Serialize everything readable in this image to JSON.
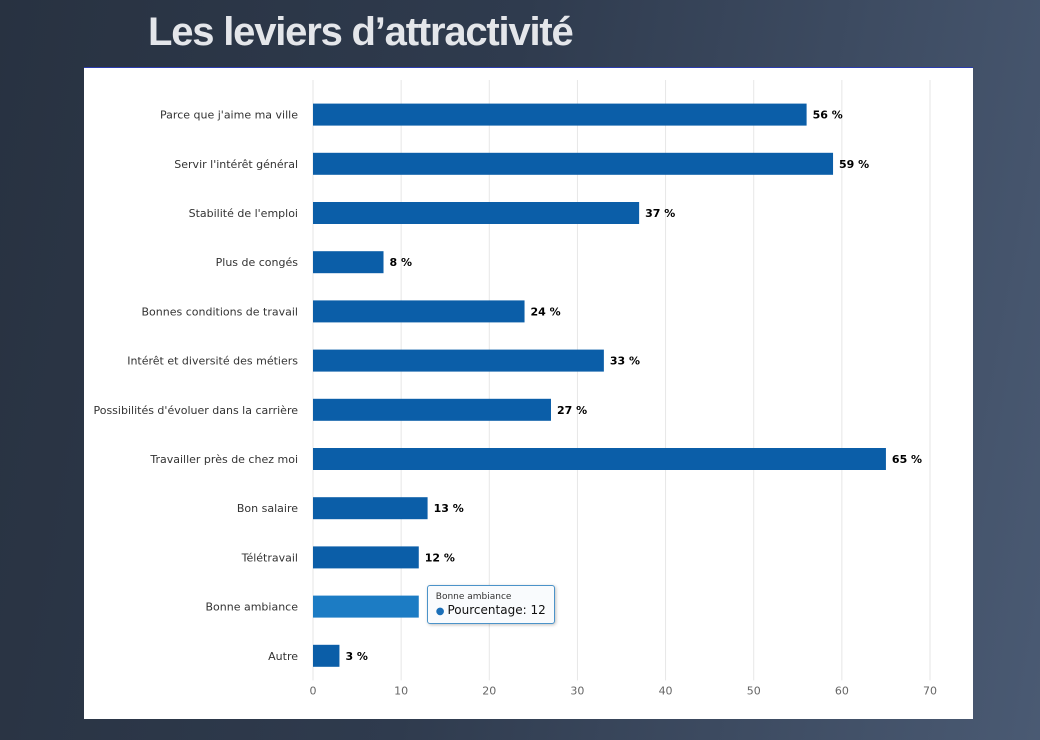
{
  "title": "Les leviers d’attractivité",
  "colors": {
    "bar": "#0b5ea8",
    "bar_hover": "#1c7cc4",
    "grid": "#e6e6e6"
  },
  "tooltip": {
    "title": "Bonne ambiance",
    "series_label": "Pourcentage",
    "value_text": "12"
  },
  "chart_data": {
    "type": "bar",
    "orientation": "horizontal",
    "categories": [
      "Parce que j'aime ma ville",
      "Servir l'intérêt général",
      "Stabilité de l'emploi",
      "Plus de congés",
      "Bonnes conditions de travail",
      "Intérêt et diversité des métiers",
      "Possibilités d'évoluer dans la carrière",
      "Travailler près de chez moi",
      "Bon salaire",
      "Télétravail",
      "Bonne ambiance",
      "Autre"
    ],
    "series": [
      {
        "name": "Pourcentage",
        "values": [
          56,
          59,
          37,
          8,
          24,
          33,
          27,
          65,
          13,
          12,
          12,
          3
        ]
      }
    ],
    "data_labels": [
      "56 %",
      "59 %",
      "37 %",
      "8 %",
      "24 %",
      "33 %",
      "27 %",
      "65 %",
      "13 %",
      "12 %",
      "",
      "3 %"
    ],
    "highlighted_index": 10,
    "xlim": [
      0,
      70
    ],
    "xticks": [
      0,
      10,
      20,
      30,
      40,
      50,
      60,
      70
    ],
    "grid": true,
    "legend": "none"
  }
}
